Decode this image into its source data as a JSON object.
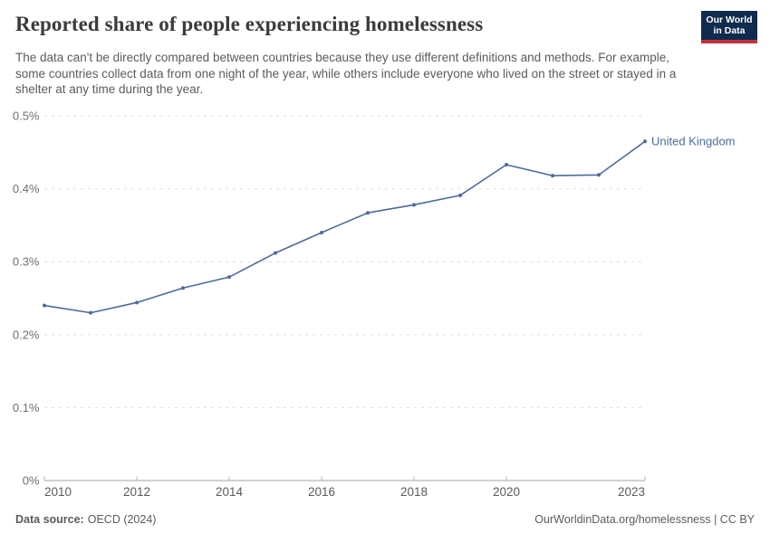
{
  "header": {
    "title": "Reported share of people experiencing homelessness",
    "subtitle": "The data can't be directly compared between countries because they use different definitions and methods. For example, some countries collect data from one night of the year, while others include everyone who lived on the street or stayed in a shelter at any time during the year.",
    "logo": {
      "line1": "Our World",
      "line2": "in Data",
      "bg_color": "#0F2B4D",
      "accent_color": "#C0323B"
    }
  },
  "chart_data": {
    "type": "line",
    "title": "Reported share of people experiencing homelessness",
    "x": [
      2010,
      2011,
      2012,
      2013,
      2014,
      2015,
      2016,
      2017,
      2018,
      2019,
      2020,
      2021,
      2022,
      2023
    ],
    "series": [
      {
        "name": "United Kingdom",
        "color": "#4C6A9C",
        "values": [
          0.24,
          0.23,
          0.244,
          0.264,
          0.279,
          0.312,
          0.34,
          0.367,
          0.378,
          0.391,
          0.433,
          0.418,
          0.419,
          0.465
        ]
      }
    ],
    "xlim": [
      2010,
      2023
    ],
    "ylim": [
      0,
      0.5
    ],
    "x_ticks": [
      2010,
      2012,
      2014,
      2016,
      2018,
      2020,
      2023
    ],
    "y_ticks": [
      {
        "value": 0,
        "label": "0%"
      },
      {
        "value": 0.1,
        "label": "0.1%"
      },
      {
        "value": 0.2,
        "label": "0.2%"
      },
      {
        "value": 0.3,
        "label": "0.3%"
      },
      {
        "value": 0.4,
        "label": "0.4%"
      },
      {
        "value": 0.5,
        "label": "0.5%"
      }
    ],
    "unit": "%",
    "grid": true,
    "legend_position": "end-of-line label",
    "grid_color": "#dedede",
    "axis_color": "#a5a5a5",
    "tick_color": "#b5b5b5",
    "y_label_color": "#6e6e6e",
    "x_label_color": "#5b5b5b"
  },
  "footer": {
    "datasource_label": "Data source:",
    "datasource_value": "OECD (2024)",
    "attribution": "OurWorldinData.org/homelessness | CC BY"
  }
}
